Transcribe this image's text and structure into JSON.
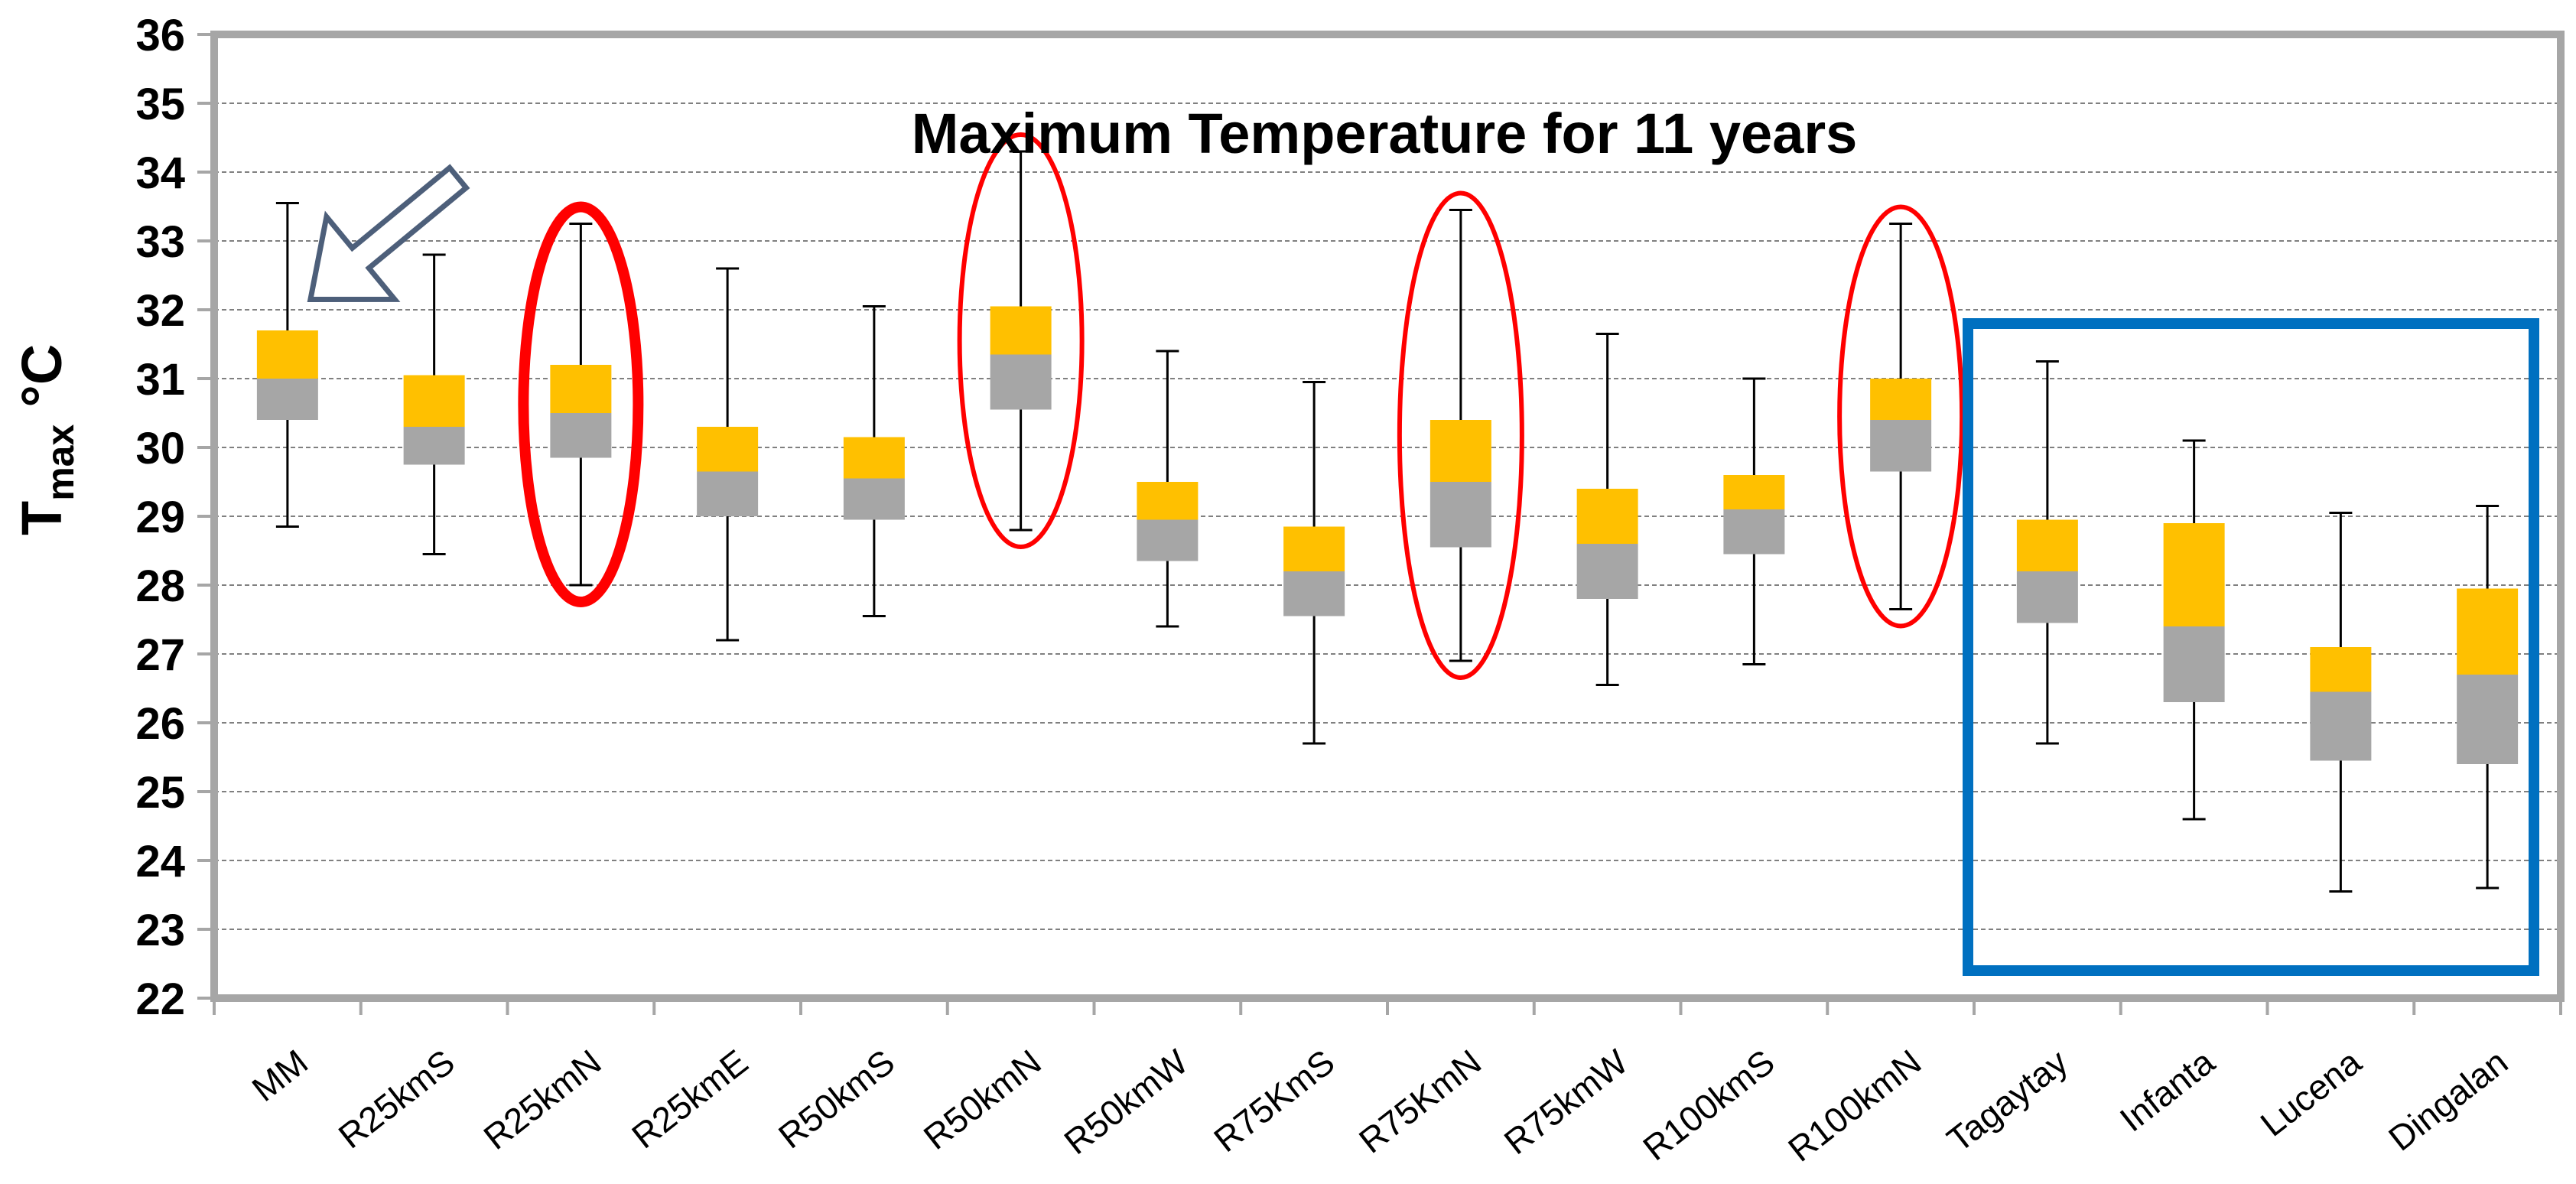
{
  "chart_data": {
    "type": "boxplot",
    "title": "Maximum Temperature for 11 years",
    "ylabel": "T",
    "ylabel_subscript": "max",
    "ylabel_unit": "°C",
    "xlabel": "",
    "ylim": [
      22,
      36
    ],
    "yticks": [
      "22",
      "23",
      "24",
      "25",
      "26",
      "27",
      "28",
      "29",
      "30",
      "31",
      "32",
      "33",
      "34",
      "35",
      "36"
    ],
    "grid": true,
    "categories": [
      "MM",
      "R25kmS",
      "R25kmN",
      "R25kmE",
      "R50kmS",
      "R50kmN",
      "R50kmW",
      "R75KmS",
      "R75KmN",
      "R75kmW",
      "R100kmS",
      "R100kmN",
      "Tagaytay",
      "Infanta",
      "Lucena",
      "Dingalan"
    ],
    "whisker_low": [
      28.85,
      28.45,
      28.0,
      27.2,
      27.55,
      28.8,
      27.4,
      25.7,
      26.9,
      26.55,
      26.85,
      27.65,
      25.7,
      24.6,
      23.55,
      23.6
    ],
    "q1": [
      30.4,
      29.75,
      29.85,
      29.0,
      28.95,
      30.55,
      28.35,
      27.55,
      28.55,
      27.8,
      28.45,
      29.65,
      27.45,
      26.3,
      25.45,
      25.4
    ],
    "median": [
      31.0,
      30.3,
      30.5,
      29.65,
      29.55,
      31.35,
      28.95,
      28.2,
      29.5,
      28.6,
      29.1,
      30.4,
      28.2,
      27.4,
      26.45,
      26.7
    ],
    "q3": [
      31.7,
      31.05,
      31.2,
      30.3,
      30.15,
      32.05,
      29.5,
      28.85,
      30.4,
      29.4,
      29.6,
      31.0,
      28.95,
      28.9,
      27.1,
      27.95
    ],
    "whisker_high": [
      33.55,
      32.8,
      33.25,
      32.6,
      32.05,
      34.3,
      31.4,
      30.95,
      33.45,
      31.65,
      31.0,
      33.25,
      31.25,
      30.1,
      29.05,
      29.15
    ],
    "colors": {
      "lower_box": "#a6a6a6",
      "upper_box": "#ffc000",
      "whisker": "#000000",
      "grid": "#808080",
      "frame": "#a6a6a6",
      "highlight_ellipse": "#ff0000",
      "highlight_rect": "#0070c0",
      "arrow": "#4d5f7a"
    },
    "annotations": {
      "arrow_target": "MM",
      "ellipses": [
        "R25kmN",
        "R50kmN",
        "R75KmN",
        "R100kmN"
      ],
      "bold_ellipse": "R25kmN",
      "rectangle_group": [
        "Tagaytay",
        "Infanta",
        "Lucena",
        "Dingalan"
      ]
    }
  }
}
